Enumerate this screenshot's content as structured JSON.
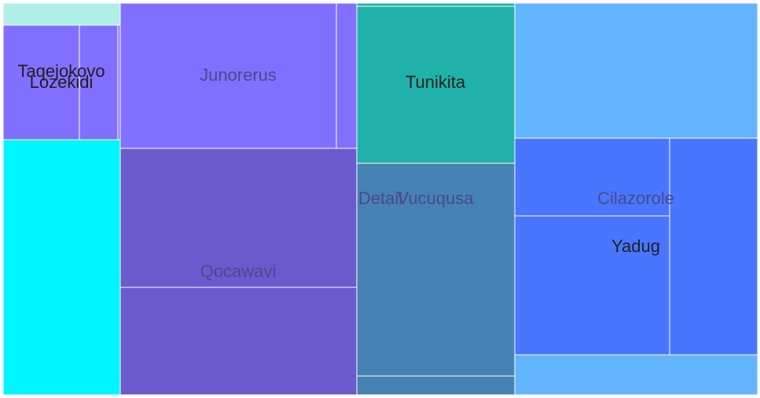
{
  "chart_data": {
    "type": "treemap",
    "colors": {
      "root_cyan": "#00f5ff",
      "pale_cyan": "#b0eeea",
      "purple_light": "#8170ff",
      "purple_dark": "#6a5acd",
      "teal": "#20b2aa",
      "steel": "#4682b4",
      "sky": "#63b5ff",
      "blue": "#4876ff"
    },
    "label_colors": {
      "dark": "#202020",
      "muted": "#4a4a8a"
    },
    "nodes": [
      {
        "id": "root-left",
        "label": "",
        "parent": "",
        "value": 40,
        "color": "root_cyan"
      },
      {
        "id": "pale-top",
        "label": "",
        "parent": "root-left",
        "value": 3,
        "color": "pale_cyan"
      },
      {
        "id": "taqejokovo",
        "label": "Taqejokovo",
        "parent": "root-left",
        "value": 11,
        "color": "purple_light"
      },
      {
        "id": "lozekidi",
        "label": "Lozekidi",
        "parent": "taqejokovo",
        "value": 4,
        "color": "purple_light"
      },
      {
        "id": "junorerus",
        "label": "Junorerus",
        "parent": "",
        "value": 53,
        "color": "purple_light"
      },
      {
        "id": "junorerus-child",
        "label": "",
        "parent": "junorerus",
        "value": 3,
        "color": "purple_light"
      },
      {
        "id": "qocawavi",
        "label": "Qocawavi",
        "parent": "",
        "value": 53,
        "color": "purple_dark"
      },
      {
        "id": "qocawavi-child",
        "label": "",
        "parent": "qocawavi",
        "value": 22,
        "color": "purple_dark"
      },
      {
        "id": "detail",
        "label": "Detail",
        "parent": "",
        "value": 55,
        "color": "steel"
      },
      {
        "id": "teal-strip",
        "label": "",
        "parent": "detail",
        "value": 1,
        "color": "teal"
      },
      {
        "id": "tunikita",
        "label": "Tunikita",
        "parent": "detail",
        "value": 22,
        "color": "teal"
      },
      {
        "id": "vucuqusa",
        "label": "Vucuqusa",
        "parent": "detail",
        "value": 30,
        "color": "steel"
      },
      {
        "id": "sky-top",
        "label": "",
        "parent": "",
        "value": 56,
        "color": "sky"
      },
      {
        "id": "cilazorole",
        "label": "Cilazorole",
        "parent": "sky-top",
        "value": 48,
        "color": "blue"
      },
      {
        "id": "yadug",
        "label": "Yadug",
        "parent": "cilazorole",
        "value": 20,
        "color": "blue"
      },
      {
        "id": "cilazorole-child",
        "label": "",
        "parent": "cilazorole",
        "value": 8,
        "color": "blue"
      },
      {
        "id": "sky-bottom",
        "label": "",
        "parent": "sky-top",
        "value": 9,
        "color": "sky"
      }
    ]
  }
}
